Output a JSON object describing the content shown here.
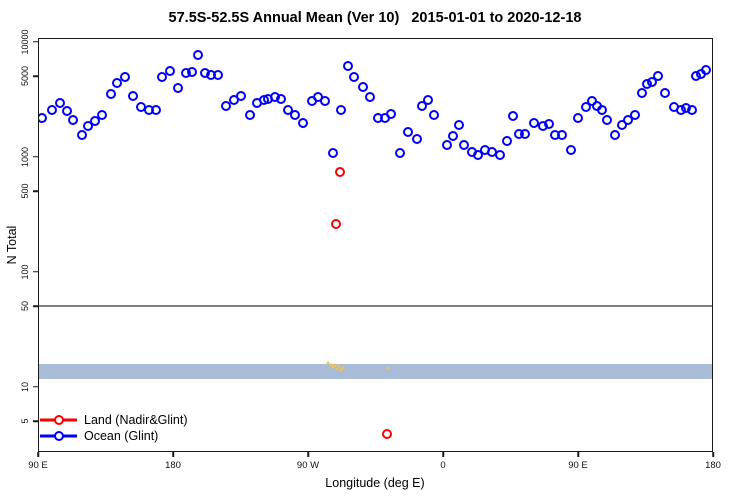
{
  "title": "57.5S-52.5S Annual Mean (Ver 10)   2015-01-01 to 2020-12-18",
  "chart_data": {
    "type": "scatter",
    "title": "57.5S-52.5S Annual Mean (Ver 10)   2015-01-01 to 2020-12-18",
    "xlabel": "Longitude (deg E)",
    "ylabel": "N Total",
    "x_axis": {
      "domain": [
        90,
        540
      ],
      "note": "longitude axis continuing eastward from 90E around the globe to 180",
      "ticks": [
        {
          "deg": 90,
          "label": "90 E"
        },
        {
          "deg": 180,
          "label": "180"
        },
        {
          "deg": 270,
          "label": "90 W"
        },
        {
          "deg": 360,
          "label": "0"
        },
        {
          "deg": 450,
          "label": "90 E"
        },
        {
          "deg": 540,
          "label": "180"
        }
      ]
    },
    "y_axis": {
      "scale": "log",
      "domain": [
        2.7,
        10800
      ],
      "ticks": [
        {
          "value": 10000,
          "label": "10000"
        },
        {
          "value": 5000,
          "label": "5000"
        },
        {
          "value": 1000,
          "label": "1000"
        },
        {
          "value": 500,
          "label": "500"
        },
        {
          "value": 100,
          "label": "100"
        },
        {
          "value": 50,
          "label": "50"
        },
        {
          "value": 10,
          "label": "10"
        },
        {
          "value": 5,
          "label": "5"
        }
      ]
    },
    "reference_line": {
      "value": 50,
      "color": "#7f7f7f"
    },
    "band": {
      "from": 11.5,
      "to": 15.5,
      "color": "#a8bcd8"
    },
    "legend": [
      {
        "label": "Land (Nadir&Glint)",
        "color": "#ff0000"
      },
      {
        "label": "Ocean (Glint)",
        "color": "#0000ff"
      }
    ],
    "point_format": [
      "deg_east_axis",
      "n_total"
    ],
    "series": [
      {
        "name": "Land (Nadir&Glint)",
        "color": "#ff0000",
        "marker": "ring",
        "points": [
          [
            291.3,
            740
          ],
          [
            288.7,
            261
          ],
          [
            322.7,
            3.8
          ]
        ]
      },
      {
        "name": "Ocean (Glint)",
        "color": "#0000ff",
        "marker": "ring",
        "points": [
          [
            92,
            2180
          ],
          [
            98.7,
            2610
          ],
          [
            104,
            2950
          ],
          [
            108.7,
            2560
          ],
          [
            112.7,
            2100
          ],
          [
            118.7,
            1550
          ],
          [
            122.7,
            1860
          ],
          [
            127.3,
            2060
          ],
          [
            132,
            2320
          ],
          [
            138,
            3600
          ],
          [
            142,
            4490
          ],
          [
            147.3,
            5060
          ],
          [
            152.7,
            3460
          ],
          [
            158,
            2720
          ],
          [
            163.3,
            2610
          ],
          [
            168,
            2610
          ],
          [
            172,
            5060
          ],
          [
            177.3,
            5720
          ],
          [
            182.7,
            4060
          ],
          [
            188,
            5480
          ],
          [
            192,
            5600
          ],
          [
            196,
            7870
          ],
          [
            201.3,
            5480
          ],
          [
            205.3,
            5210
          ],
          [
            210,
            5210
          ],
          [
            215.3,
            2830
          ],
          [
            220.7,
            3190
          ],
          [
            225.3,
            3460
          ],
          [
            231.3,
            2320
          ],
          [
            236,
            2950
          ],
          [
            240.7,
            3160
          ],
          [
            243.3,
            3260
          ],
          [
            248,
            3380
          ],
          [
            252,
            3220
          ],
          [
            256.7,
            2610
          ],
          [
            261.3,
            2320
          ],
          [
            266.7,
            1980
          ],
          [
            272.7,
            3100
          ],
          [
            276.7,
            3350
          ],
          [
            281.3,
            3100
          ],
          [
            286.7,
            1080
          ],
          [
            292,
            2610
          ],
          [
            296.7,
            6310
          ],
          [
            300.7,
            5060
          ],
          [
            306.7,
            4110
          ],
          [
            311.3,
            3380
          ],
          [
            316.7,
            2220
          ],
          [
            321.3,
            2220
          ],
          [
            325.3,
            2400
          ],
          [
            331.3,
            1080
          ],
          [
            336.7,
            1650
          ],
          [
            342.7,
            1440
          ],
          [
            346,
            2780
          ],
          [
            350,
            3160
          ],
          [
            354,
            2320
          ],
          [
            362.7,
            1270
          ],
          [
            366.7,
            1520
          ],
          [
            370.7,
            1900
          ],
          [
            374,
            1290
          ],
          [
            379.3,
            1100
          ],
          [
            383.3,
            1040
          ],
          [
            388,
            1150
          ],
          [
            393,
            1100
          ],
          [
            398,
            1040
          ],
          [
            402.7,
            1380
          ],
          [
            406.7,
            2270
          ],
          [
            410.7,
            1590
          ],
          [
            414.7,
            1590
          ],
          [
            421.3,
            2010
          ],
          [
            426.7,
            1860
          ],
          [
            430.7,
            1940
          ],
          [
            435.3,
            1550
          ],
          [
            440,
            1550
          ],
          [
            446,
            1150
          ],
          [
            450.7,
            2180
          ],
          [
            456,
            2720
          ],
          [
            460,
            3100
          ],
          [
            463.3,
            2830
          ],
          [
            466.7,
            2610
          ],
          [
            470,
            2100
          ],
          [
            475.3,
            1550
          ],
          [
            480,
            1900
          ],
          [
            484,
            2100
          ],
          [
            488.7,
            2360
          ],
          [
            493.3,
            3670
          ],
          [
            496.7,
            4400
          ],
          [
            500,
            4580
          ],
          [
            504,
            5160
          ],
          [
            508.7,
            3670
          ],
          [
            514.7,
            2720
          ],
          [
            519.3,
            2610
          ],
          [
            522.7,
            2670
          ],
          [
            526.7,
            2610
          ],
          [
            529.3,
            5160
          ],
          [
            532.7,
            5370
          ],
          [
            536,
            5800
          ]
        ]
      },
      {
        "name": "band-detail-dots",
        "color": "#f2c050",
        "marker": "dot",
        "points": [
          [
            283.5,
            15.8
          ],
          [
            285,
            15.1
          ],
          [
            286.3,
            14.7
          ],
          [
            287.7,
            15.4
          ],
          [
            289,
            14.2
          ],
          [
            290.3,
            14.9
          ],
          [
            291.7,
            13.9
          ],
          [
            293.3,
            14.4
          ],
          [
            323.3,
            14.3
          ]
        ]
      }
    ]
  }
}
